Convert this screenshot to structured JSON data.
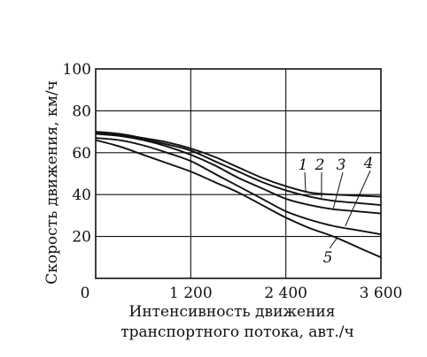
{
  "chart_data": {
    "type": "line",
    "xlabel_line1": "Интенсивность движения",
    "xlabel_line2": "транспортного потока, авт./ч",
    "ylabel": "Скорость движения, км/ч",
    "xlim": [
      0,
      3600
    ],
    "ylim": [
      0,
      100
    ],
    "x_ticks": [
      0,
      1200,
      2400,
      3600
    ],
    "x_tick_labels": [
      "0",
      "1 200",
      "2 400",
      "3 600"
    ],
    "y_ticks": [
      20,
      40,
      60,
      80,
      100
    ],
    "y_tick_labels": [
      "20",
      "40",
      "60",
      "80",
      "100"
    ],
    "grid": true,
    "line_color": "#111111",
    "series": [
      {
        "name": "1",
        "x": [
          0,
          300,
          600,
          900,
          1200,
          1500,
          1800,
          2100,
          2400,
          2700,
          3000,
          3300,
          3600
        ],
        "y": [
          70,
          69,
          67,
          65,
          62,
          58,
          53,
          48,
          44,
          41,
          40,
          39.5,
          39
        ]
      },
      {
        "name": "2",
        "x": [
          0,
          300,
          600,
          900,
          1200,
          1500,
          1800,
          2100,
          2400,
          2700,
          3000,
          3300,
          3600
        ],
        "y": [
          69.5,
          68.5,
          66.5,
          64,
          61,
          56,
          51,
          46,
          42,
          39,
          37,
          36,
          35
        ]
      },
      {
        "name": "3",
        "x": [
          0,
          300,
          600,
          900,
          1200,
          1500,
          1800,
          2100,
          2400,
          2700,
          3000,
          3300,
          3600
        ],
        "y": [
          69,
          68,
          66,
          63,
          59,
          54,
          48,
          43,
          38,
          35,
          33,
          32,
          31
        ]
      },
      {
        "name": "4",
        "x": [
          0,
          300,
          600,
          900,
          1200,
          1500,
          1800,
          2100,
          2400,
          2700,
          3000,
          3300,
          3600
        ],
        "y": [
          67,
          66,
          63.5,
          60,
          56,
          50,
          44,
          38,
          32,
          28,
          25,
          23,
          21
        ]
      },
      {
        "name": "5",
        "x": [
          0,
          300,
          600,
          900,
          1200,
          1500,
          1800,
          2100,
          2400,
          2700,
          3000,
          3300,
          3600
        ],
        "y": [
          66,
          63,
          59,
          55,
          51,
          46,
          41,
          35,
          29,
          24,
          20,
          15,
          10
        ]
      }
    ]
  }
}
